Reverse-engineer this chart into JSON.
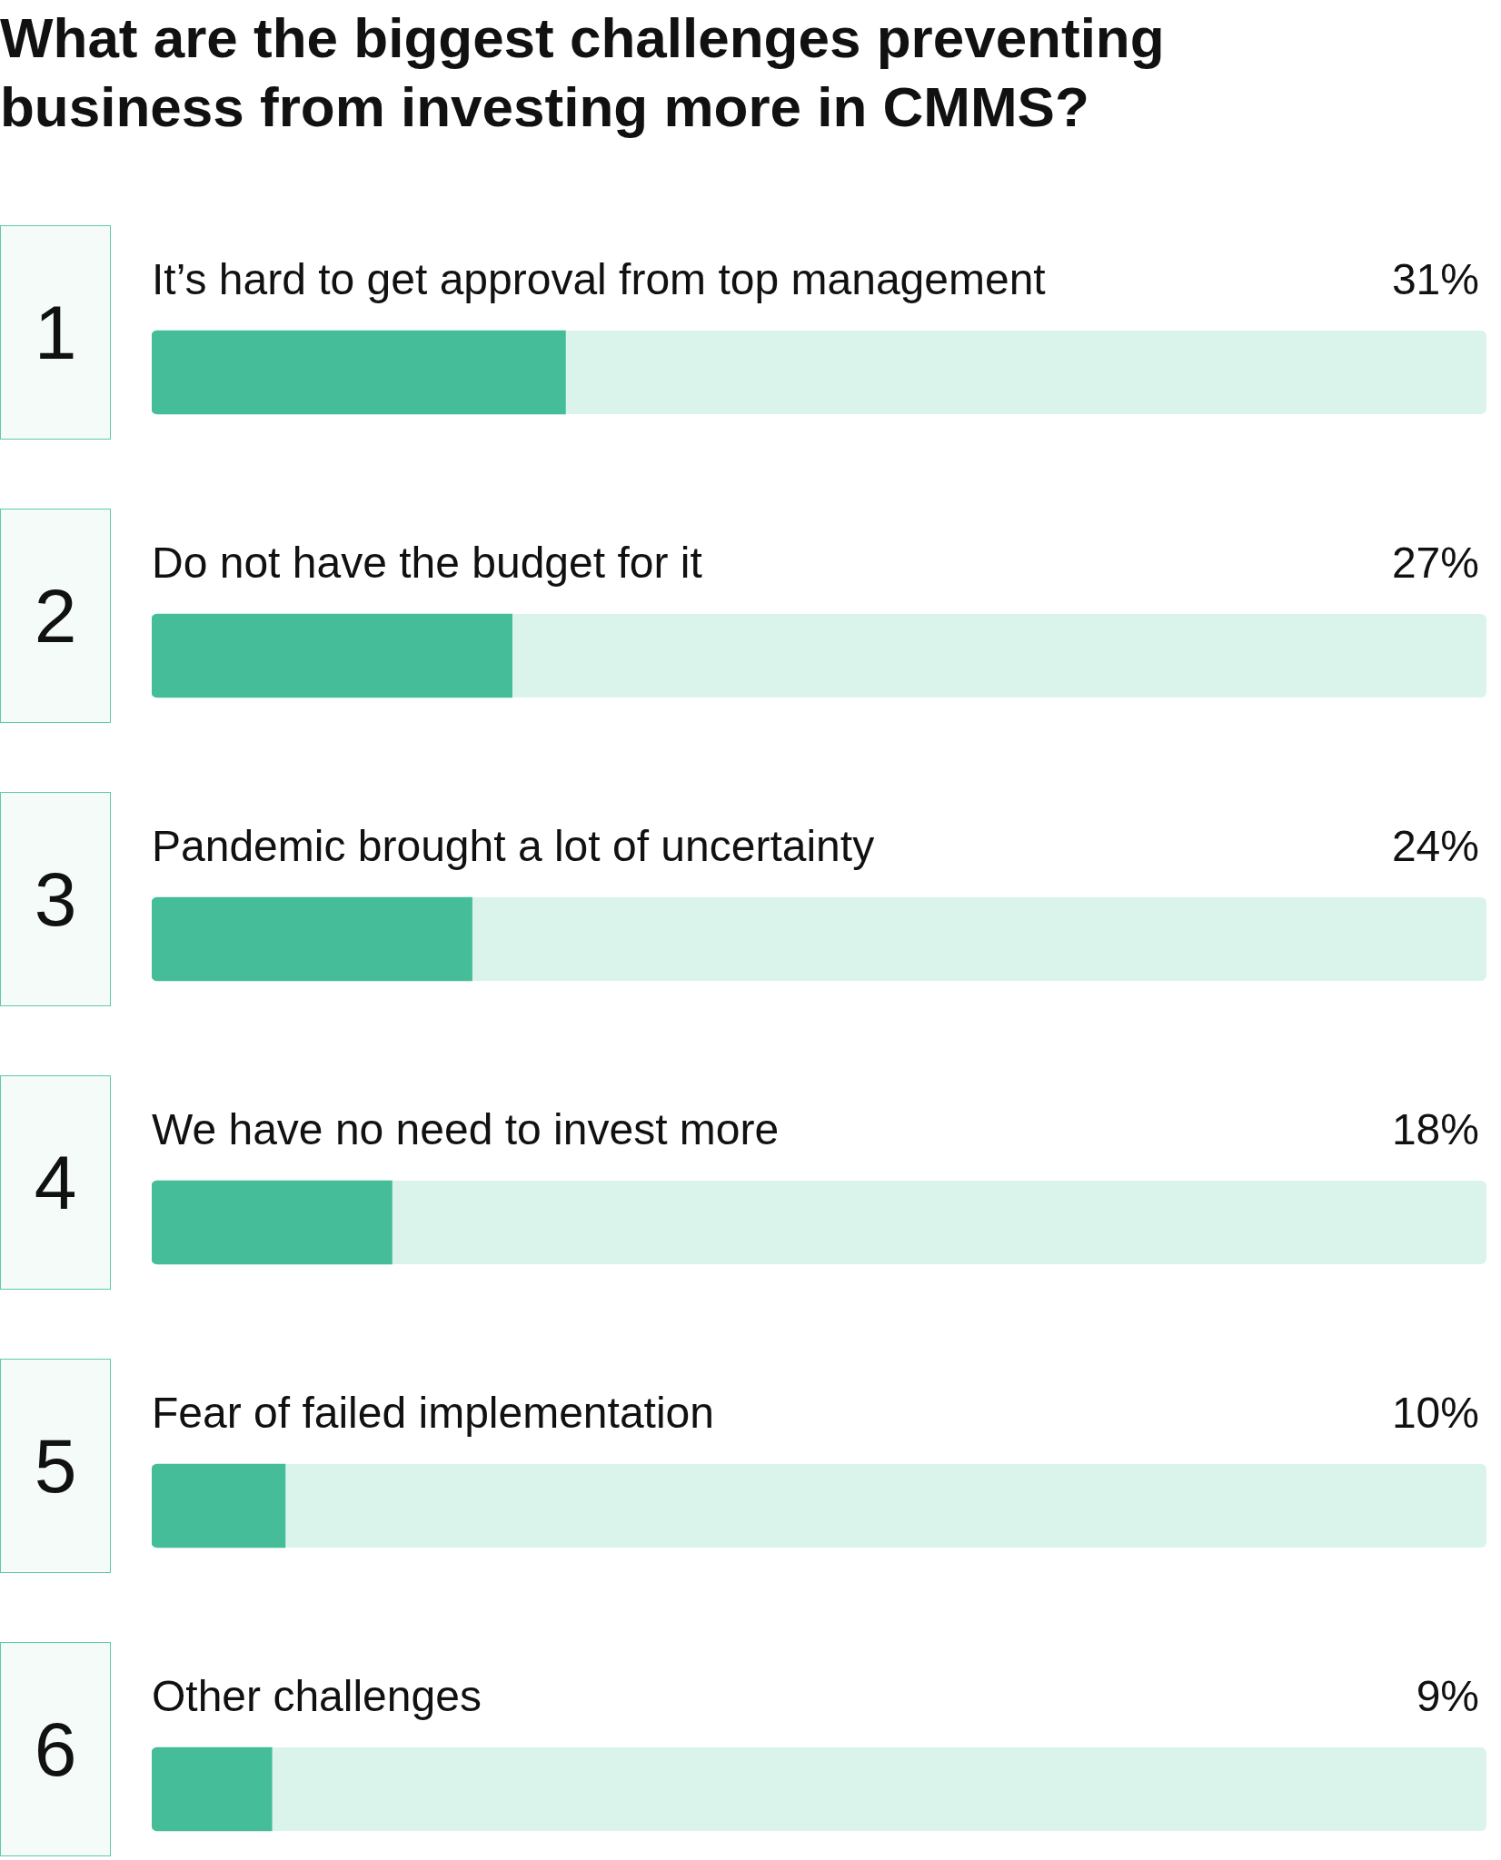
{
  "chart_data": {
    "type": "bar",
    "orientation": "horizontal",
    "title": "What are the biggest challenges preventing business from investing more in CMMS?",
    "categories": [
      "It’s hard to get approval from top management",
      "Do not have the budget for it",
      "Pandemic brought a lot of uncertainty",
      "We have no need to invest more",
      "Fear of failed implementation",
      "Other challenges"
    ],
    "values": [
      31,
      27,
      24,
      18,
      10,
      9
    ],
    "value_labels": [
      "31%",
      "27%",
      "24%",
      "18%",
      "10%",
      "9%"
    ],
    "color": "#44bd98",
    "xlim": [
      0,
      100
    ],
    "tick_labels": false,
    "legend": false,
    "annotations": [
      "1",
      "2",
      "3",
      "4",
      "5",
      "6"
    ]
  }
}
